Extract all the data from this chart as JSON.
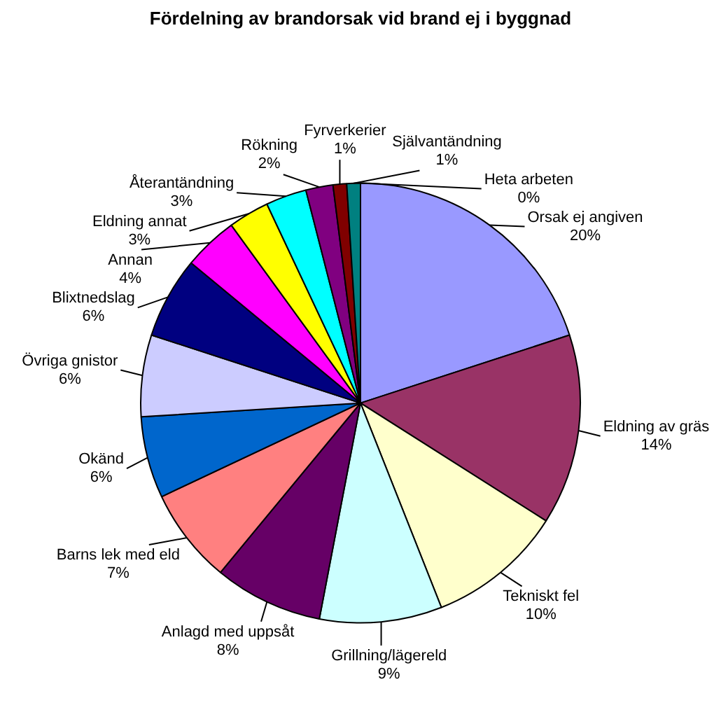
{
  "chart_data": {
    "type": "pie",
    "title": "Fördelning av brandorsak vid brand ej i byggnad",
    "categories": [
      "Orsak ej angiven",
      "Eldning av gräs",
      "Tekniskt fel",
      "Grillning/lägereld",
      "Anlagd med uppsåt",
      "Barns lek med eld",
      "Okänd",
      "Övriga gnistor",
      "Blixtnedslag",
      "Annan",
      "Eldning annat",
      "Återantändning",
      "Rökning",
      "Fyrverkerier",
      "Självantändning",
      "Heta arbeten"
    ],
    "values": [
      20,
      14,
      10,
      9,
      8,
      7,
      6,
      6,
      6,
      4,
      3,
      3,
      2,
      1,
      1,
      0
    ],
    "value_labels": [
      "20%",
      "14%",
      "10%",
      "9%",
      "8%",
      "7%",
      "6%",
      "6%",
      "6%",
      "4%",
      "3%",
      "3%",
      "2%",
      "1%",
      "1%",
      "0%"
    ],
    "colors": [
      "#9999ff",
      "#993366",
      "#ffffcc",
      "#ccffff",
      "#660066",
      "#ff8080",
      "#0066cc",
      "#ccccff",
      "#000080",
      "#ff00ff",
      "#ffff00",
      "#00ffff",
      "#800080",
      "#800000",
      "#008080",
      "#0000ff"
    ]
  }
}
